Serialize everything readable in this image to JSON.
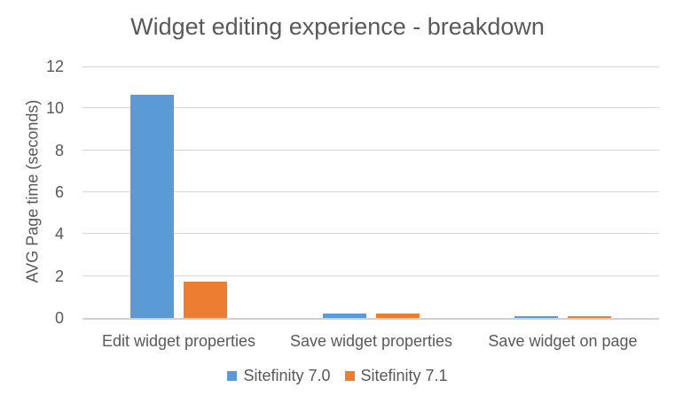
{
  "chart_data": {
    "type": "bar",
    "title": "Widget editing experience - breakdown",
    "xlabel": "",
    "ylabel": "AVG Page time (seconds)",
    "categories": [
      "Edit widget properties",
      "Save widget properties",
      "Save widget on page"
    ],
    "series": [
      {
        "name": "Sitefinity 7.0",
        "color": "#5B9BD5",
        "values": [
          10.65,
          0.22,
          0.08
        ]
      },
      {
        "name": "Sitefinity 7.1",
        "color": "#ED7D31",
        "values": [
          1.75,
          0.2,
          0.07
        ]
      }
    ],
    "ylim": [
      0,
      12
    ],
    "yticks": [
      0,
      2,
      4,
      6,
      8,
      10,
      12
    ],
    "grid": true,
    "legend_position": "bottom",
    "colors": {
      "text": "#595959",
      "gridline": "#D6D6D6",
      "axis": "#D0D0D0",
      "background": "#FFFFFF"
    }
  }
}
